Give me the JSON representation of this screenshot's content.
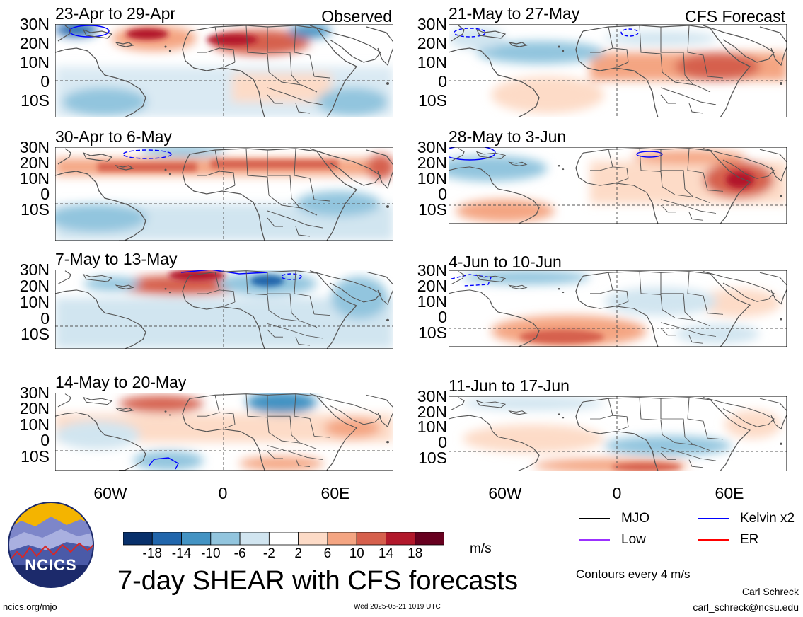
{
  "labels": {
    "observed": "Observed",
    "forecast": "CFS Forecast"
  },
  "panels": [
    {
      "title": "23-Apr to 29-Apr"
    },
    {
      "title": "30-Apr to 6-May"
    },
    {
      "title": "7-May to 13-May"
    },
    {
      "title": "14-May to 20-May"
    },
    {
      "title": "21-May to 27-May"
    },
    {
      "title": "28-May to 3-Jun"
    },
    {
      "title": "4-Jun to 10-Jun"
    },
    {
      "title": "11-Jun to 17-Jun"
    }
  ],
  "lat_ticks": [
    "30N",
    "20N",
    "10N",
    "0",
    "10S"
  ],
  "lon_ticks": [
    "60W",
    "0",
    "60E"
  ],
  "colorbar": {
    "unit": "m/s",
    "tick_labels": [
      "-18",
      "-14",
      "-10",
      "-6",
      "-2",
      "2",
      "6",
      "10",
      "14",
      "18"
    ],
    "colors": [
      "#08306b",
      "#2166ac",
      "#4393c3",
      "#92c5de",
      "#d1e5f0",
      "#ffffff",
      "#fddbc7",
      "#f4a582",
      "#d6604d",
      "#b2182b",
      "#67001f"
    ]
  },
  "legend": {
    "items": [
      {
        "label": "MJO",
        "color": "#000000"
      },
      {
        "label": "Kelvin x2",
        "color": "#0000ff"
      },
      {
        "label": "Low",
        "color": "#9b30ff"
      },
      {
        "label": "ER",
        "color": "#ff0000"
      }
    ],
    "contours_note": "Contours every 4 m/s"
  },
  "main_title": "7-day SHEAR with CFS forecasts",
  "logo_text": "NCICS",
  "footer": {
    "url": "ncics.org/mjo",
    "timestamp": "Wed 2025-05-21 1019 UTC",
    "author": "Carl Schreck",
    "email": "carl_schreck@ncsu.edu"
  }
}
